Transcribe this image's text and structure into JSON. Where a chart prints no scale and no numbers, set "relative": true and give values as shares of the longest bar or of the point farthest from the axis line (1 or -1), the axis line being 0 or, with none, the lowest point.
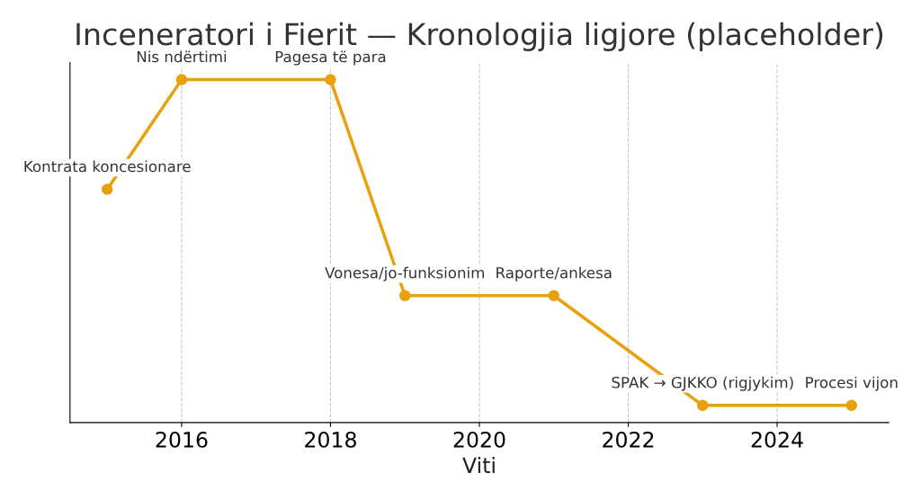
{
  "chart_data": {
    "type": "line",
    "title": "Inceneratori i Fierit — Kronologjia ligjore (placeholder)",
    "xlabel": "Viti",
    "relative": true,
    "x": [
      2015,
      2016,
      2018,
      2019,
      2021,
      2023,
      2025
    ],
    "series": [
      {
        "color": "#e8a10c",
        "values": [
          0.68,
          1,
          1,
          0.37,
          0.37,
          0.05,
          0.05
        ]
      }
    ],
    "xlim": [
      2014.5,
      2025.5
    ],
    "xticks": [
      2016,
      2018,
      2020,
      2022,
      2024
    ],
    "grid": "x",
    "marker": "circle",
    "line_style": "solid",
    "annotations": [
      {
        "text": "Kontrata koncesionare",
        "x": 2015,
        "y": 0.68
      },
      {
        "text": "Nis ndërtimi",
        "x": 2016,
        "y": 1
      },
      {
        "text": "Pagesa të para",
        "x": 2018,
        "y": 1
      },
      {
        "text": "Vonesa/jo-funksionim",
        "x": 2019,
        "y": 0.37
      },
      {
        "text": "Raporte/ankesa",
        "x": 2021,
        "y": 0.37
      },
      {
        "text": "SPAK → GJKKO (rigjykim)",
        "x": 2023,
        "y": 0.05
      },
      {
        "text": "Procesi vijon",
        "x": 2025,
        "y": 0.05
      }
    ]
  }
}
